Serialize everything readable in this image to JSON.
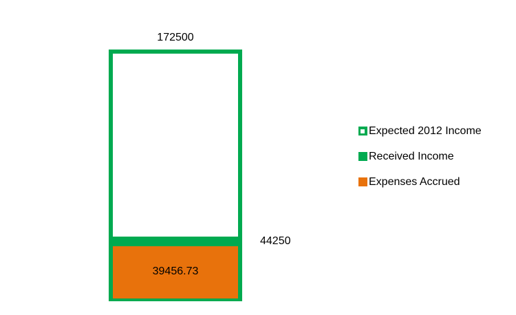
{
  "colors": {
    "green": "#00AA50",
    "orange": "#E8720C",
    "text": "#000000",
    "bg": "#FFFFFF"
  },
  "chart_data": {
    "type": "bar",
    "orientation": "vertical",
    "title": "",
    "xlabel": "",
    "ylabel": "",
    "categories": [
      ""
    ],
    "series": [
      {
        "name": "Expected 2012 Income",
        "values": [
          172500
        ],
        "fill": "none",
        "border_color": "#00AA50",
        "data_label": "172500",
        "data_label_position": "outside-top"
      },
      {
        "name": "Received Income",
        "values": [
          44250
        ],
        "fill": "#00AA50",
        "data_label": "44250",
        "data_label_position": "outside-right-of-top"
      },
      {
        "name": "Expenses Accrued",
        "values": [
          39456.73
        ],
        "fill": "#E8720C",
        "data_label": "39456.73",
        "data_label_position": "inside-center"
      }
    ],
    "ylim": [
      0,
      172500
    ],
    "axes_visible": false,
    "gridlines": false,
    "legend_position": "right",
    "bar_overlap": "overlapped"
  },
  "labels": {
    "expected_income": "172500",
    "received_income": "44250",
    "expenses_accrued": "39456.73"
  },
  "legend": {
    "items": [
      {
        "label": "Expected 2012 Income",
        "swatch": "green-outlined-square"
      },
      {
        "label": "Received Income",
        "swatch": "green-filled-square"
      },
      {
        "label": "Expenses Accrued",
        "swatch": "orange-filled-square"
      }
    ]
  }
}
